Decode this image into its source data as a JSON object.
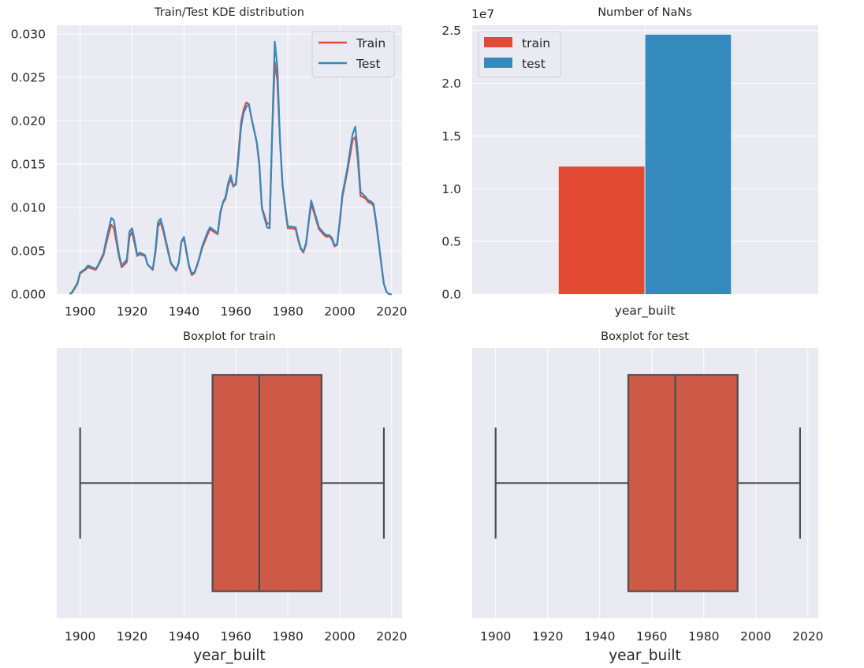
{
  "chart_data": [
    {
      "type": "line",
      "title": "Train/Test KDE distribution",
      "xlabel": "",
      "ylabel": "",
      "xlim": [
        1891,
        2024
      ],
      "ylim": [
        0,
        0.031
      ],
      "xticks": [
        "1900",
        "1920",
        "1940",
        "1960",
        "1980",
        "2000",
        "2020"
      ],
      "yticks": [
        "0.000",
        "0.005",
        "0.010",
        "0.015",
        "0.020",
        "0.025",
        "0.030"
      ],
      "grid": true,
      "legend": "top-right",
      "series": [
        {
          "name": "Train",
          "color": "#e24a33",
          "x": [
            1896,
            1897,
            1899,
            1900,
            1902,
            1903,
            1904,
            1906,
            1907,
            1909,
            1910,
            1911,
            1912,
            1913,
            1914,
            1915,
            1916,
            1918,
            1919,
            1920,
            1921,
            1922,
            1923,
            1925,
            1926,
            1928,
            1929,
            1930,
            1931,
            1932,
            1934,
            1935,
            1937,
            1938,
            1939,
            1940,
            1941,
            1942,
            1943,
            1944,
            1945,
            1946,
            1947,
            1949,
            1950,
            1951,
            1953,
            1954,
            1955,
            1956,
            1957,
            1958,
            1959,
            1960,
            1961,
            1962,
            1963,
            1964,
            1965,
            1966,
            1968,
            1969,
            1970,
            1972,
            1973,
            1974,
            1975,
            1976,
            1977,
            1978,
            1979,
            1980,
            1981,
            1983,
            1984,
            1985,
            1986,
            1987,
            1988,
            1989,
            1990,
            1992,
            1994,
            1995,
            1996,
            1997,
            1998,
            1999,
            2000,
            2001,
            2002,
            2003,
            2004,
            2005,
            2006,
            2007,
            2008,
            2009,
            2010,
            2011,
            2012,
            2013,
            2014,
            2015,
            2016,
            2017,
            2018,
            2019,
            2020
          ],
          "y": [
            0.0,
            0.0002,
            0.0012,
            0.0024,
            0.0028,
            0.0031,
            0.003,
            0.0028,
            0.0033,
            0.0045,
            0.0058,
            0.007,
            0.008,
            0.0076,
            0.006,
            0.0043,
            0.0031,
            0.0037,
            0.0066,
            0.0072,
            0.0058,
            0.0044,
            0.0046,
            0.0044,
            0.0034,
            0.0028,
            0.0047,
            0.0078,
            0.0083,
            0.0073,
            0.0047,
            0.0035,
            0.0027,
            0.0036,
            0.006,
            0.0064,
            0.0047,
            0.0031,
            0.0022,
            0.0024,
            0.0032,
            0.0042,
            0.0053,
            0.0068,
            0.0075,
            0.0073,
            0.0069,
            0.0093,
            0.0105,
            0.011,
            0.0125,
            0.0133,
            0.0124,
            0.0128,
            0.0163,
            0.0198,
            0.0213,
            0.0221,
            0.0219,
            0.0203,
            0.0175,
            0.0149,
            0.01,
            0.0081,
            0.0082,
            0.0185,
            0.0268,
            0.0245,
            0.0176,
            0.0125,
            0.0098,
            0.0076,
            0.0076,
            0.0075,
            0.0062,
            0.0052,
            0.0048,
            0.0057,
            0.0081,
            0.0104,
            0.0095,
            0.0075,
            0.0068,
            0.0066,
            0.0067,
            0.0063,
            0.0055,
            0.0057,
            0.0082,
            0.0112,
            0.0127,
            0.0142,
            0.016,
            0.0178,
            0.0181,
            0.0154,
            0.0113,
            0.0112,
            0.011,
            0.0106,
            0.0105,
            0.0102,
            0.0082,
            0.0059,
            0.0034,
            0.0012,
            0.0003,
            0.0,
            0.0
          ]
        },
        {
          "name": "Test",
          "color": "#348abd",
          "x": [
            1896,
            1897,
            1899,
            1900,
            1902,
            1903,
            1904,
            1906,
            1907,
            1909,
            1910,
            1911,
            1912,
            1913,
            1914,
            1915,
            1916,
            1918,
            1919,
            1920,
            1921,
            1922,
            1923,
            1925,
            1926,
            1928,
            1929,
            1930,
            1931,
            1932,
            1934,
            1935,
            1937,
            1938,
            1939,
            1940,
            1941,
            1942,
            1943,
            1944,
            1945,
            1946,
            1947,
            1949,
            1950,
            1951,
            1953,
            1954,
            1955,
            1956,
            1957,
            1958,
            1959,
            1960,
            1961,
            1962,
            1963,
            1964,
            1965,
            1966,
            1968,
            1969,
            1970,
            1972,
            1973,
            1974,
            1975,
            1976,
            1977,
            1978,
            1979,
            1980,
            1981,
            1983,
            1984,
            1985,
            1986,
            1987,
            1988,
            1989,
            1990,
            1992,
            1994,
            1995,
            1996,
            1997,
            1998,
            1999,
            2000,
            2001,
            2002,
            2003,
            2004,
            2005,
            2006,
            2007,
            2008,
            2009,
            2010,
            2011,
            2012,
            2013,
            2014,
            2015,
            2016,
            2017,
            2018,
            2019,
            2020
          ],
          "y": [
            0.0,
            0.0003,
            0.0013,
            0.0025,
            0.0029,
            0.0033,
            0.0032,
            0.0029,
            0.0034,
            0.0047,
            0.0062,
            0.0075,
            0.0088,
            0.0085,
            0.0065,
            0.0046,
            0.0033,
            0.004,
            0.0072,
            0.0076,
            0.0062,
            0.0045,
            0.0048,
            0.0045,
            0.0034,
            0.0029,
            0.005,
            0.0083,
            0.0087,
            0.0076,
            0.0049,
            0.0036,
            0.0028,
            0.0037,
            0.0061,
            0.0066,
            0.0049,
            0.0032,
            0.0024,
            0.0025,
            0.0033,
            0.0043,
            0.0055,
            0.0071,
            0.0077,
            0.0075,
            0.007,
            0.0095,
            0.0106,
            0.0112,
            0.0128,
            0.0137,
            0.0125,
            0.0126,
            0.0157,
            0.0193,
            0.0209,
            0.0216,
            0.0219,
            0.0203,
            0.0176,
            0.0152,
            0.0099,
            0.0077,
            0.0076,
            0.0189,
            0.0291,
            0.0261,
            0.0177,
            0.0125,
            0.0101,
            0.0078,
            0.0078,
            0.0077,
            0.0064,
            0.0053,
            0.0049,
            0.0059,
            0.0083,
            0.0108,
            0.0098,
            0.0077,
            0.007,
            0.0068,
            0.0068,
            0.0065,
            0.0056,
            0.0058,
            0.0085,
            0.0115,
            0.013,
            0.0146,
            0.0166,
            0.0185,
            0.0193,
            0.0162,
            0.0118,
            0.0115,
            0.0112,
            0.0108,
            0.0107,
            0.0104,
            0.0084,
            0.006,
            0.0035,
            0.0012,
            0.0003,
            0.0,
            0.0
          ]
        }
      ]
    },
    {
      "type": "bar",
      "title": "Number of NaNs",
      "offset_text": "1e7",
      "categories": [
        "year_built"
      ],
      "ylim": [
        0,
        2.55
      ],
      "yticks": [
        "0.0",
        "0.5",
        "1.0",
        "1.5",
        "2.0",
        "2.5"
      ],
      "grid": true,
      "legend": "top-left",
      "series": [
        {
          "name": "train",
          "color": "#e24a33",
          "values": [
            1.21
          ]
        },
        {
          "name": "test",
          "color": "#348abd",
          "values": [
            2.46
          ]
        }
      ]
    },
    {
      "type": "box",
      "title": "Boxplot for train",
      "xlabel": "year_built",
      "xlim": [
        1891,
        2024
      ],
      "xticks": [
        "1900",
        "1920",
        "1940",
        "1960",
        "1980",
        "2000",
        "2020"
      ],
      "color": "#cc5a47",
      "min": 1900,
      "q1": 1951,
      "median": 1969,
      "q3": 1993,
      "max": 2017
    },
    {
      "type": "box",
      "title": "Boxplot for test",
      "xlabel": "year_built",
      "xlim": [
        1891,
        2024
      ],
      "xticks": [
        "1900",
        "1920",
        "1940",
        "1960",
        "1980",
        "2000",
        "2020"
      ],
      "color": "#cc5a47",
      "min": 1900,
      "q1": 1951,
      "median": 1969,
      "q3": 1993,
      "max": 2017
    }
  ]
}
